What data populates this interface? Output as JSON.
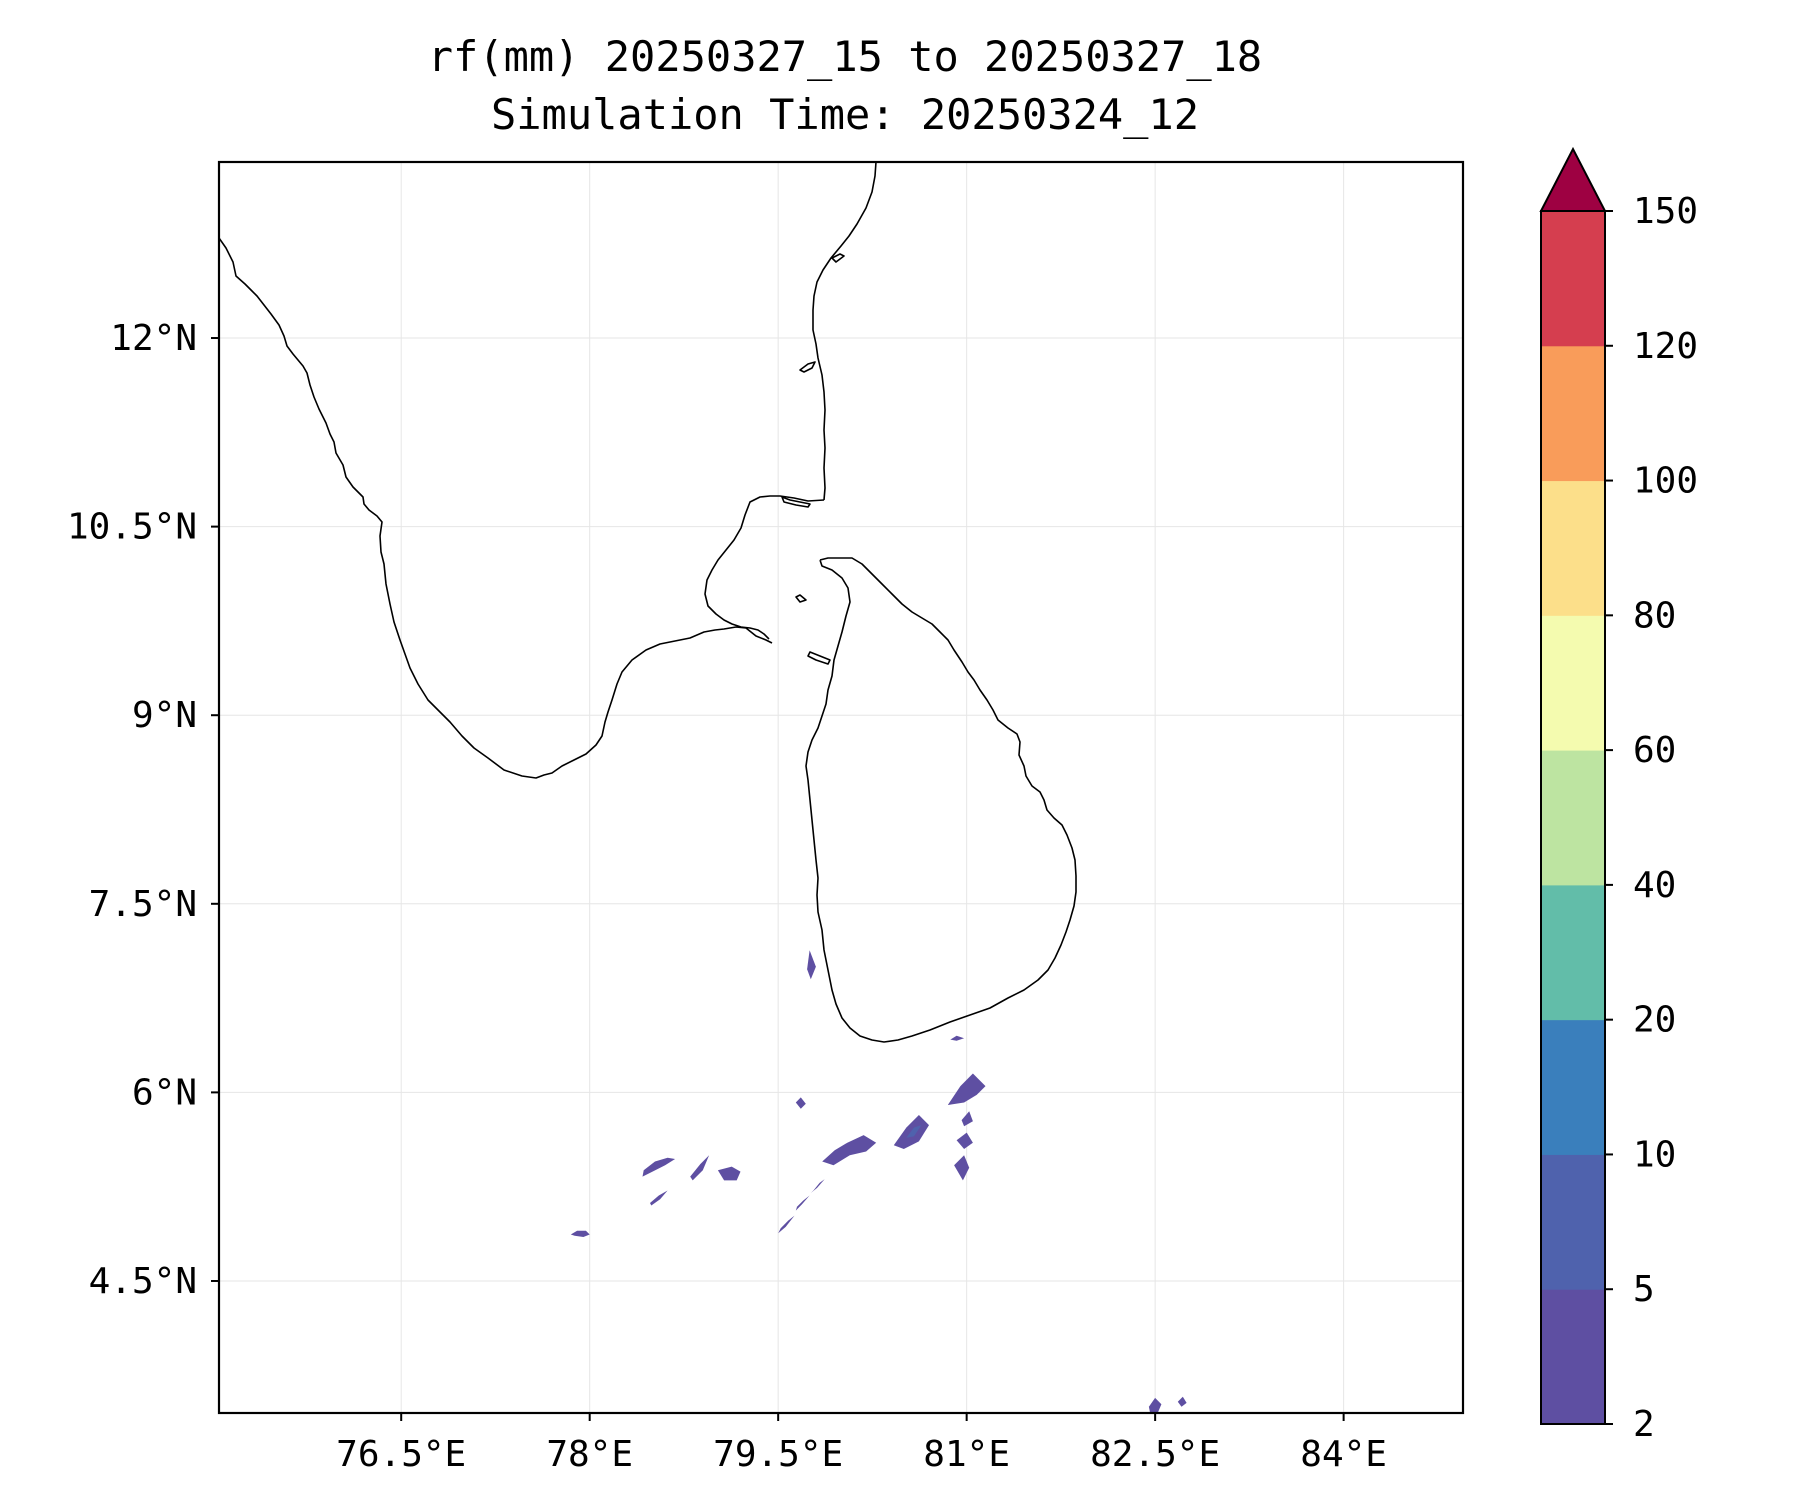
{
  "title": "rf(mm) 20250327_15 to 20250327_18",
  "subtitle": "Simulation Time: 20250324_12",
  "chart_data": {
    "type": "heatmap",
    "variable": "rf(mm)",
    "x_ticks": [
      76.5,
      78,
      79.5,
      81,
      82.5,
      84
    ],
    "x_tick_labels": [
      "76.5°E",
      "78°E",
      "79.5°E",
      "81°E",
      "82.5°E",
      "84°E"
    ],
    "y_ticks": [
      4.5,
      6,
      7.5,
      9,
      10.5,
      12
    ],
    "y_tick_labels": [
      "4.5°N",
      "6°N",
      "7.5°N",
      "9°N",
      "10.5°N",
      "12°N"
    ],
    "xlim": [
      75.05,
      84.95
    ],
    "ylim": [
      3.45,
      13.4
    ],
    "grid": true,
    "colorbar": {
      "levels": [
        2,
        5,
        10,
        20,
        40,
        60,
        80,
        100,
        120,
        150
      ],
      "tick_labels": [
        "2",
        "5",
        "10",
        "20",
        "40",
        "60",
        "80",
        "100",
        "120",
        "150"
      ],
      "colors": [
        "#5e4fa2",
        "#4f62ad",
        "#3a7fbc",
        "#62bda9",
        "#bde4a1",
        "#f4fbaf",
        "#fcdf8a",
        "#f99c5a",
        "#d53e4f"
      ],
      "extend_color": "#9e0142",
      "extend": "max",
      "placement": "right"
    },
    "rain_areas": [
      {
        "level": "2-5",
        "lon": [
          77.85,
          77.9,
          77.97,
          78.0,
          77.95,
          77.88,
          77.85
        ],
        "lat": [
          4.87,
          4.9,
          4.9,
          4.87,
          4.85,
          4.86,
          4.87
        ]
      },
      {
        "level": "2-5",
        "lon": [
          78.43,
          78.52,
          78.62,
          78.68,
          78.6,
          78.5,
          78.42,
          78.43
        ],
        "lat": [
          5.38,
          5.45,
          5.48,
          5.47,
          5.42,
          5.37,
          5.33,
          5.38
        ]
      },
      {
        "level": "2-5",
        "lon": [
          78.48,
          78.55,
          78.62,
          78.56,
          78.49,
          78.48
        ],
        "lat": [
          5.12,
          5.18,
          5.22,
          5.15,
          5.1,
          5.12
        ]
      },
      {
        "level": "2-5",
        "lon": [
          78.8,
          78.88,
          78.95,
          78.9,
          78.82,
          78.8
        ],
        "lat": [
          5.33,
          5.43,
          5.5,
          5.38,
          5.3,
          5.33
        ]
      },
      {
        "level": "2-5",
        "lon": [
          79.02,
          79.13,
          79.2,
          79.17,
          79.07,
          79.02
        ],
        "lat": [
          5.38,
          5.41,
          5.37,
          5.3,
          5.3,
          5.38
        ]
      },
      {
        "level": "2-5",
        "lon": [
          79.52,
          79.58,
          79.63,
          79.56,
          79.5,
          79.52
        ],
        "lat": [
          4.92,
          4.98,
          5.02,
          4.93,
          4.88,
          4.92
        ]
      },
      {
        "level": "2-5",
        "lon": [
          79.65,
          79.7,
          79.75,
          79.69,
          79.64,
          79.65
        ],
        "lat": [
          5.09,
          5.14,
          5.18,
          5.11,
          5.06,
          5.09
        ]
      },
      {
        "level": "2-5",
        "lon": [
          79.78,
          79.83,
          79.87,
          79.81,
          79.76,
          79.78
        ],
        "lat": [
          5.22,
          5.28,
          5.31,
          5.24,
          5.2,
          5.22
        ]
      },
      {
        "level": "2-5",
        "lon": [
          79.85,
          79.95,
          80.05,
          80.18,
          80.28,
          80.2,
          80.07,
          79.94,
          79.85
        ],
        "lat": [
          5.45,
          5.54,
          5.6,
          5.66,
          5.6,
          5.53,
          5.5,
          5.42,
          5.45
        ]
      },
      {
        "level": "2-5",
        "lon": [
          80.42,
          80.52,
          80.62,
          80.7,
          80.62,
          80.5,
          80.42
        ],
        "lat": [
          5.58,
          5.72,
          5.82,
          5.74,
          5.61,
          5.55,
          5.58
        ]
      },
      {
        "level": "5-10",
        "lon": [
          80.52,
          80.58,
          80.64,
          80.58,
          80.52
        ],
        "lat": [
          5.64,
          5.72,
          5.74,
          5.65,
          5.64
        ]
      },
      {
        "level": "2-5",
        "lon": [
          80.85,
          80.95,
          81.05,
          81.15,
          81.08,
          80.98,
          80.85
        ],
        "lat": [
          5.9,
          6.05,
          6.15,
          6.05,
          5.98,
          5.92,
          5.9
        ]
      },
      {
        "level": "2-5",
        "lon": [
          80.96,
          81.02,
          81.05,
          80.98,
          80.96
        ],
        "lat": [
          5.78,
          5.85,
          5.77,
          5.73,
          5.78
        ]
      },
      {
        "level": "2-5",
        "lon": [
          80.9,
          80.98,
          81.02,
          80.97,
          80.9
        ],
        "lat": [
          5.42,
          5.5,
          5.4,
          5.3,
          5.42
        ]
      },
      {
        "level": "2-5",
        "lon": [
          80.92,
          81.0,
          81.05,
          80.98,
          80.92
        ],
        "lat": [
          5.62,
          5.68,
          5.6,
          5.55,
          5.62
        ]
      },
      {
        "level": "2-5",
        "lon": [
          79.73,
          79.75,
          79.8,
          79.76,
          79.73
        ],
        "lat": [
          6.98,
          7.13,
          7.0,
          6.9,
          6.98
        ]
      },
      {
        "level": "2-5",
        "lon": [
          80.87,
          80.92,
          80.98,
          80.92,
          80.87
        ],
        "lat": [
          6.42,
          6.45,
          6.43,
          6.41,
          6.42
        ]
      },
      {
        "level": "2-5",
        "lon": [
          79.64,
          79.68,
          79.72,
          79.68,
          79.64
        ],
        "lat": [
          5.92,
          5.96,
          5.91,
          5.87,
          5.92
        ]
      },
      {
        "level": "2-5",
        "lon": [
          82.45,
          82.5,
          82.55,
          82.52,
          82.46,
          82.45
        ],
        "lat": [
          3.5,
          3.57,
          3.52,
          3.45,
          3.45,
          3.5
        ]
      },
      {
        "level": "2-5",
        "lon": [
          82.68,
          82.72,
          82.75,
          82.71,
          82.68
        ],
        "lat": [
          3.54,
          3.58,
          3.53,
          3.5,
          3.54
        ]
      }
    ]
  }
}
